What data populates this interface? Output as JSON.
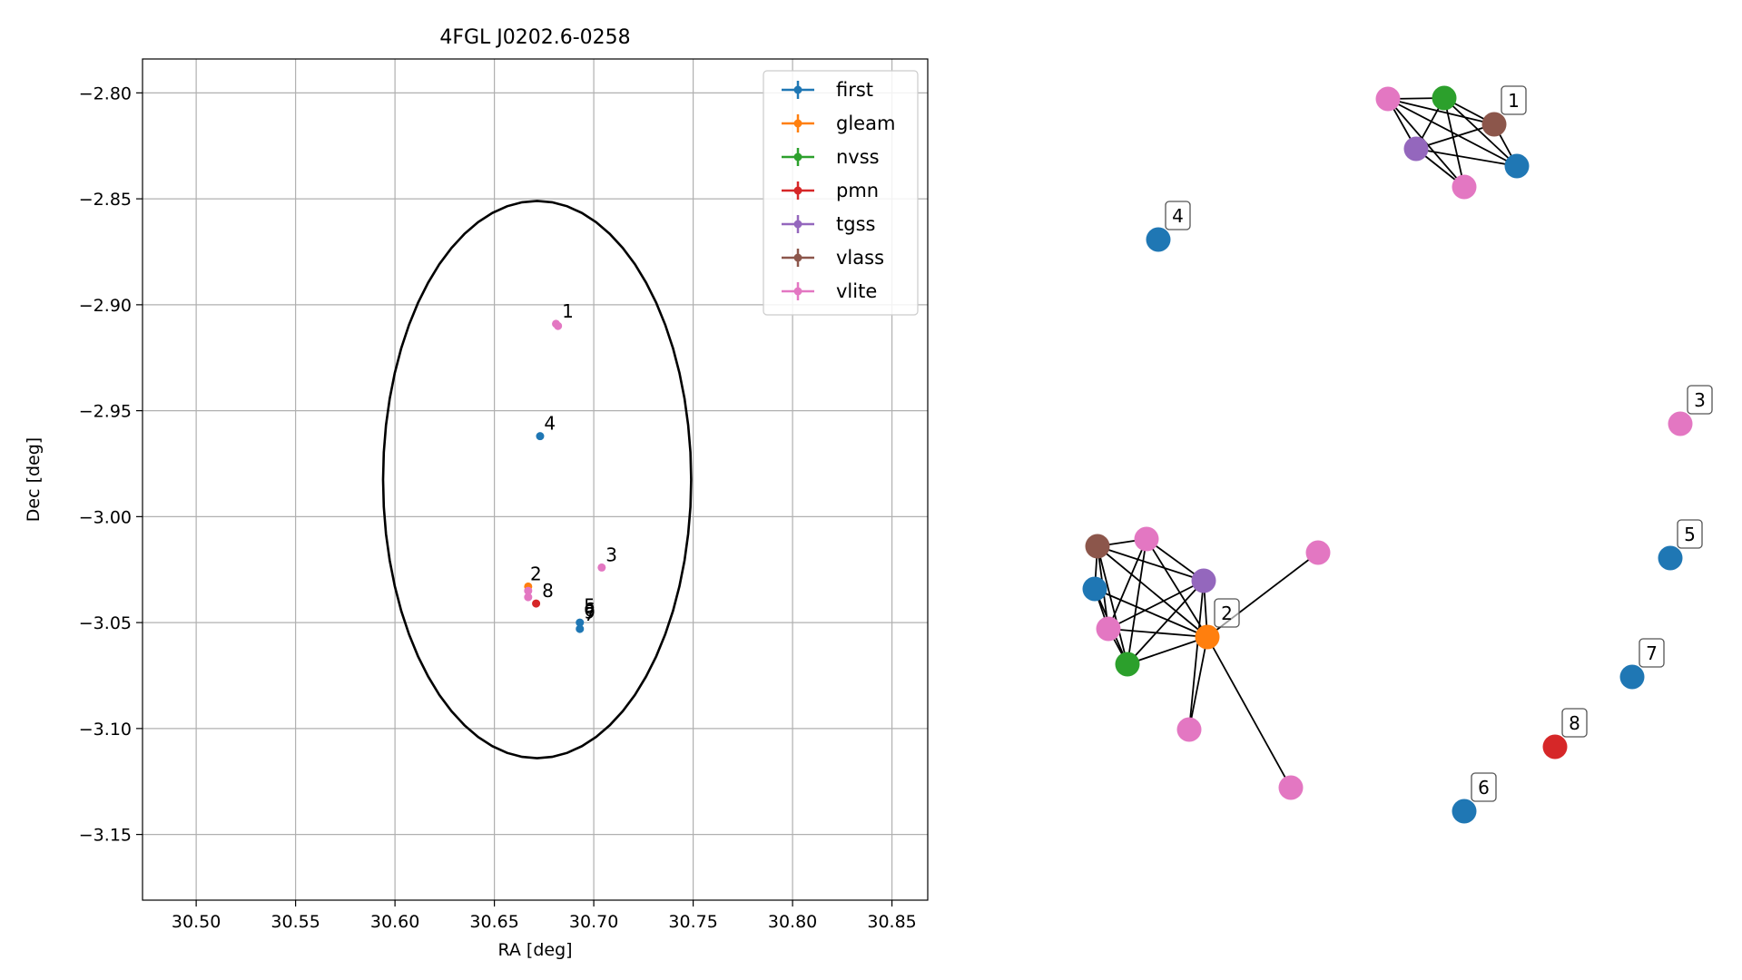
{
  "chart_data": [
    {
      "type": "scatter",
      "title": "4FGL J0202.6-0258",
      "xlabel": "RA [deg]",
      "ylabel": "Dec [deg]",
      "xlim": [
        30.473,
        30.868
      ],
      "ylim": [
        -3.181,
        -2.784
      ],
      "xticks": [
        30.5,
        30.55,
        30.6,
        30.65,
        30.7,
        30.75,
        30.8,
        30.85
      ],
      "yticks": [
        -2.8,
        -2.85,
        -2.9,
        -2.95,
        -3.0,
        -3.05,
        -3.1,
        -3.15
      ],
      "grid": true,
      "legend_placement": "top-right",
      "legend": [
        {
          "name": "first",
          "color": "#1f77b4"
        },
        {
          "name": "gleam",
          "color": "#ff7f0e"
        },
        {
          "name": "nvss",
          "color": "#2ca02c"
        },
        {
          "name": "pmn",
          "color": "#d62728"
        },
        {
          "name": "tgss",
          "color": "#9467bd"
        },
        {
          "name": "vlass",
          "color": "#8c564b"
        },
        {
          "name": "vlite",
          "color": "#e377c2"
        }
      ],
      "ellipse": {
        "center": [
          30.6715,
          -2.9825
        ],
        "ra_halfwidth": 0.0775,
        "dec_halfheight": 0.1315
      },
      "points": [
        {
          "catalog": "vlite",
          "x": 30.681,
          "y": -2.909
        },
        {
          "catalog": "vlite",
          "x": 30.682,
          "y": -2.91
        },
        {
          "catalog": "first",
          "x": 30.673,
          "y": -2.962
        },
        {
          "catalog": "vlite",
          "x": 30.704,
          "y": -3.024
        },
        {
          "catalog": "gleam",
          "x": 30.667,
          "y": -3.033
        },
        {
          "catalog": "vlite",
          "x": 30.667,
          "y": -3.035
        },
        {
          "catalog": "vlite",
          "x": 30.667,
          "y": -3.038
        },
        {
          "catalog": "pmn",
          "x": 30.671,
          "y": -3.041
        },
        {
          "catalog": "first",
          "x": 30.693,
          "y": -3.05
        },
        {
          "catalog": "first",
          "x": 30.693,
          "y": -3.053
        }
      ],
      "labels": [
        {
          "text": "1",
          "x": 30.684,
          "y": -2.906
        },
        {
          "text": "4",
          "x": 30.675,
          "y": -2.959
        },
        {
          "text": "3",
          "x": 30.706,
          "y": -3.021
        },
        {
          "text": "2",
          "x": 30.668,
          "y": -3.03
        },
        {
          "text": "8",
          "x": 30.674,
          "y": -3.038
        },
        {
          "text": "5",
          "x": 30.695,
          "y": -3.045
        },
        {
          "text": "6",
          "x": 30.695,
          "y": -3.047
        },
        {
          "text": "7",
          "x": 30.695,
          "y": -3.049
        },
        {
          "text": "9",
          "x": 30.695,
          "y": -3.048
        }
      ]
    },
    {
      "type": "network",
      "nodes": [
        {
          "id": "a1",
          "catalog": "vlite"
        },
        {
          "id": "a2",
          "catalog": "nvss"
        },
        {
          "id": "a3",
          "catalog": "vlass"
        },
        {
          "id": "a4",
          "catalog": "tgss"
        },
        {
          "id": "a5",
          "catalog": "vlite"
        },
        {
          "id": "a6",
          "catalog": "first"
        },
        {
          "id": "n4",
          "catalog": "first"
        },
        {
          "id": "n3",
          "catalog": "vlite"
        },
        {
          "id": "n5",
          "catalog": "first"
        },
        {
          "id": "n7",
          "catalog": "first"
        },
        {
          "id": "n8",
          "catalog": "pmn"
        },
        {
          "id": "n6",
          "catalog": "first"
        },
        {
          "id": "b1",
          "catalog": "vlass"
        },
        {
          "id": "b2",
          "catalog": "vlite"
        },
        {
          "id": "b3",
          "catalog": "tgss"
        },
        {
          "id": "b4",
          "catalog": "vlite"
        },
        {
          "id": "b5",
          "catalog": "first"
        },
        {
          "id": "b6",
          "catalog": "vlite"
        },
        {
          "id": "b7",
          "catalog": "gleam"
        },
        {
          "id": "b8",
          "catalog": "nvss"
        },
        {
          "id": "b9",
          "catalog": "vlite"
        },
        {
          "id": "b10",
          "catalog": "vlite"
        }
      ],
      "edges": [
        [
          "a1",
          "a2"
        ],
        [
          "a1",
          "a4"
        ],
        [
          "a1",
          "a5"
        ],
        [
          "a1",
          "a6"
        ],
        [
          "a1",
          "a3"
        ],
        [
          "a2",
          "a4"
        ],
        [
          "a2",
          "a5"
        ],
        [
          "a2",
          "a6"
        ],
        [
          "a2",
          "a3"
        ],
        [
          "a4",
          "a5"
        ],
        [
          "a4",
          "a6"
        ],
        [
          "a4",
          "a3"
        ],
        [
          "a3",
          "a6"
        ],
        [
          "b1",
          "b2"
        ],
        [
          "b1",
          "b3"
        ],
        [
          "b1",
          "b5"
        ],
        [
          "b1",
          "b6"
        ],
        [
          "b1",
          "b7"
        ],
        [
          "b1",
          "b8"
        ],
        [
          "b2",
          "b3"
        ],
        [
          "b2",
          "b6"
        ],
        [
          "b2",
          "b7"
        ],
        [
          "b2",
          "b8"
        ],
        [
          "b3",
          "b6"
        ],
        [
          "b3",
          "b7"
        ],
        [
          "b3",
          "b8"
        ],
        [
          "b3",
          "b9"
        ],
        [
          "b5",
          "b6"
        ],
        [
          "b5",
          "b7"
        ],
        [
          "b5",
          "b8"
        ],
        [
          "b6",
          "b7"
        ],
        [
          "b6",
          "b8"
        ],
        [
          "b7",
          "b8"
        ],
        [
          "b7",
          "b4"
        ],
        [
          "b7",
          "b9"
        ],
        [
          "b7",
          "b10"
        ]
      ],
      "node_labels": [
        {
          "text": "1",
          "node": "a3"
        },
        {
          "text": "4",
          "node": "n4"
        },
        {
          "text": "3",
          "node": "n3"
        },
        {
          "text": "5",
          "node": "n5"
        },
        {
          "text": "2",
          "node": "b7"
        },
        {
          "text": "7",
          "node": "n7"
        },
        {
          "text": "8",
          "node": "n8"
        },
        {
          "text": "6",
          "node": "n6"
        }
      ]
    }
  ]
}
